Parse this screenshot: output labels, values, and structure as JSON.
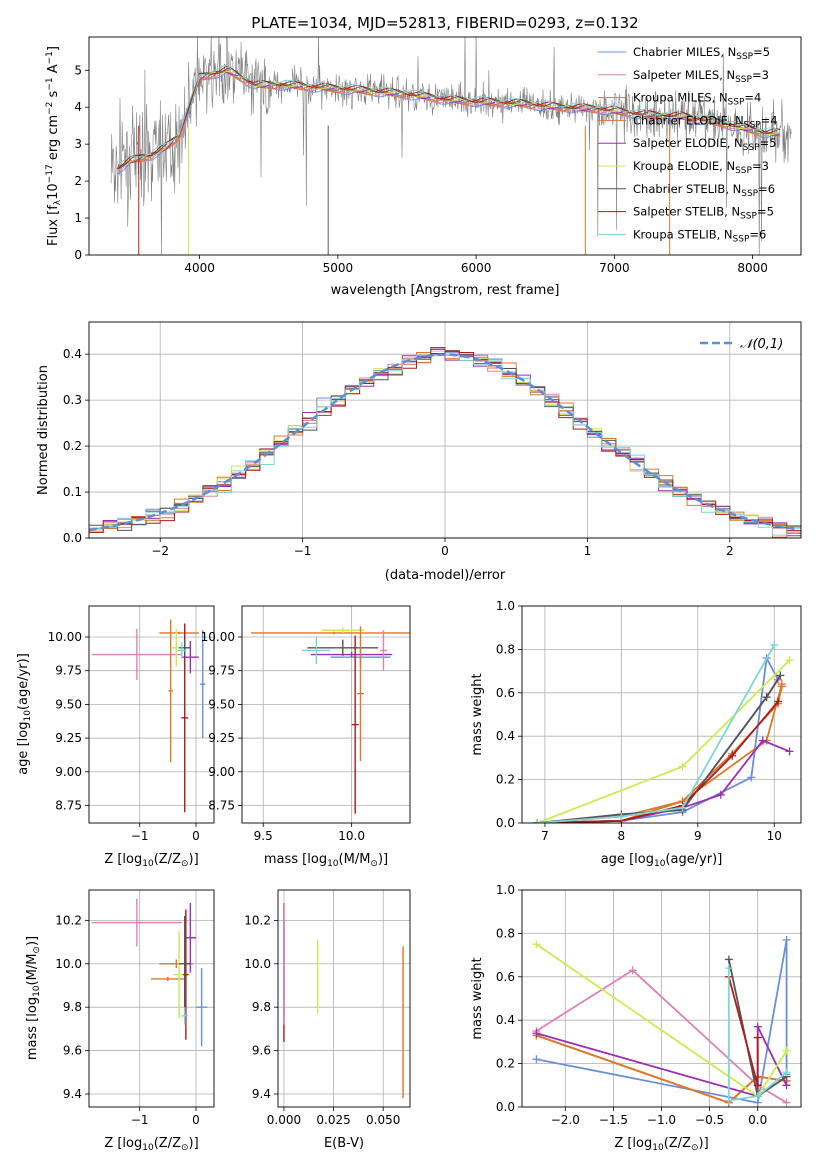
{
  "figure_title": "PLATE=1034, MJD=52813, FIBERID=0293, z=0.132",
  "colors": {
    "Chabrier MILES": "#6a8fd9",
    "Salpeter MILES": "#e07fb6",
    "Kroupa MILES": "#e0762a",
    "Chabrier ELODIE": "#e0762a",
    "Salpeter ELODIE": "#9a2fb5",
    "Kroupa ELODIE": "#c9ec4f",
    "Chabrier STELIB": "#555555",
    "Salpeter STELIB": "#b01a1a",
    "Kroupa STELIB": "#7dd6d6",
    "data": "#808080",
    "normal": "#5b8fdc",
    "grid": "#b0b0b0"
  },
  "chart_data": [
    {
      "type": "line",
      "xlabel": "wavelength [Angstrom, rest frame]",
      "ylabel": "Flux [f_λ10^-17 erg cm^-2 s^-1 A^-1]",
      "xlim": [
        3200,
        8350
      ],
      "ylim": [
        0,
        5.9
      ],
      "xticks": [
        4000,
        5000,
        6000,
        7000,
        8000
      ],
      "yticks": [
        0,
        1,
        2,
        3,
        4,
        5
      ],
      "grid": false,
      "legend_position": "top-right",
      "series": [
        {
          "name": "Chabrier MILES, N_SSP=5"
        },
        {
          "name": "Salpeter MILES, N_SSP=3"
        },
        {
          "name": "Kroupa MILES, N_SSP=4"
        },
        {
          "name": "Chabrier ELODIE, N_SSP=4"
        },
        {
          "name": "Salpeter ELODIE, N_SSP=5"
        },
        {
          "name": "Kroupa ELODIE, N_SSP=3"
        },
        {
          "name": "Chabrier STELIB, N_SSP=6"
        },
        {
          "name": "Salpeter STELIB, N_SSP=5"
        },
        {
          "name": "Kroupa STELIB, N_SSP=6"
        }
      ],
      "model_continuum": {
        "x": [
          3350,
          3500,
          3650,
          3750,
          3850,
          4000,
          4200,
          4400,
          4600,
          4800,
          5000,
          5200,
          5500,
          5800,
          6000,
          6300,
          6600,
          6900,
          7200,
          7500,
          7800,
          8100
        ],
        "y": [
          2.2,
          2.55,
          2.7,
          2.9,
          3.2,
          4.8,
          5.0,
          4.6,
          4.6,
          4.55,
          4.5,
          4.45,
          4.35,
          4.2,
          4.15,
          4.1,
          4.0,
          3.95,
          3.8,
          3.75,
          3.55,
          3.3
        ]
      }
    },
    {
      "type": "line",
      "xlabel": "(data-model)/error",
      "ylabel": "Normed distribution",
      "xlim": [
        -2.5,
        2.5
      ],
      "ylim": [
        0,
        0.47
      ],
      "xticks": [
        -2,
        -1,
        0,
        1,
        2
      ],
      "yticks": [
        0.0,
        0.1,
        0.2,
        0.3,
        0.4
      ],
      "grid": true,
      "legend_position": "top-right",
      "reference_curve": {
        "name": "𝒩(0,1)",
        "mu": 0,
        "sigma": 1
      }
    },
    {
      "type": "scatter",
      "xlabel": "Z [log10(Z/Z⊙)]",
      "ylabel": "age  [log10(age/yr)]",
      "xlim": [
        -1.9,
        0.32
      ],
      "ylim": [
        8.62,
        10.23
      ],
      "xticks": [
        -1,
        0
      ],
      "yticks": [
        8.75,
        9.0,
        9.25,
        9.5,
        9.75,
        10.0
      ],
      "grid": true,
      "points": [
        {
          "fit": "Salpeter MILES",
          "x": -1.05,
          "y": 9.87,
          "xerr": 0.8,
          "yerr": 0.19
        },
        {
          "fit": "Chabrier ELODIE",
          "x": -0.3,
          "y": 10.03,
          "xerr": 0.35,
          "yerr": 0.01
        },
        {
          "fit": "Kroupa ELODIE",
          "x": -0.35,
          "y": 9.92,
          "xerr": 0.08,
          "yerr": 0.14
        },
        {
          "fit": "Kroupa MILES",
          "x": -0.45,
          "y": 9.6,
          "xerr": 0.04,
          "yerr": 0.53
        },
        {
          "fit": "Chabrier MILES",
          "x": 0.12,
          "y": 9.65,
          "xerr": 0.05,
          "yerr": 0.4
        },
        {
          "fit": "Salpeter ELODIE",
          "x": -0.1,
          "y": 9.85,
          "xerr": 0.15,
          "yerr": 0.12
        },
        {
          "fit": "Salpeter STELIB",
          "x": -0.2,
          "y": 9.4,
          "xerr": 0.06,
          "yerr": 0.7
        },
        {
          "fit": "Chabrier STELIB",
          "x": -0.2,
          "y": 9.92,
          "xerr": 0.1,
          "yerr": 0.06
        },
        {
          "fit": "Kroupa STELIB",
          "x": -0.25,
          "y": 9.9,
          "xerr": 0.08,
          "yerr": 0.06
        }
      ]
    },
    {
      "type": "scatter",
      "xlabel": "mass [log10(M/M⊙)]",
      "ylabel": "",
      "xlim": [
        9.38,
        10.33
      ],
      "ylim": [
        8.62,
        10.23
      ],
      "xticks": [
        9.5,
        10.0
      ],
      "yticks": [
        8.75,
        9.0,
        9.25,
        9.5,
        9.75,
        10.0
      ],
      "grid": true,
      "points": [
        {
          "fit": "Kroupa MILES",
          "x": 9.9,
          "y": 10.03,
          "xerr": 0.47,
          "yerr": 0.01
        },
        {
          "fit": "Kroupa ELODIE",
          "x": 9.95,
          "y": 10.05,
          "xerr": 0.12,
          "yerr": 0.02
        },
        {
          "fit": "Chabrier MILES",
          "x": 10.05,
          "y": 9.85,
          "xerr": 0.17,
          "yerr": 0.07
        },
        {
          "fit": "Salpeter ELODIE",
          "x": 10.0,
          "y": 9.87,
          "xerr": 0.23,
          "yerr": 0.02
        },
        {
          "fit": "Salpeter STELIB",
          "x": 10.02,
          "y": 9.35,
          "xerr": 0.02,
          "yerr": 0.66
        },
        {
          "fit": "Chabrier STELIB",
          "x": 9.95,
          "y": 9.92,
          "xerr": 0.2,
          "yerr": 0.06
        },
        {
          "fit": "Kroupa STELIB",
          "x": 9.8,
          "y": 9.9,
          "xerr": 0.08,
          "yerr": 0.1
        },
        {
          "fit": "Salpeter MILES",
          "x": 10.18,
          "y": 9.9,
          "xerr": 0.02,
          "yerr": 0.15
        },
        {
          "fit": "Chabrier ELODIE",
          "x": 10.05,
          "y": 9.58,
          "xerr": 0.02,
          "yerr": 0.5
        }
      ]
    },
    {
      "type": "line",
      "xlabel": "age  [log10(age/yr)]",
      "ylabel": "mass weight",
      "xlim": [
        6.7,
        10.35
      ],
      "ylim": [
        0,
        1.0
      ],
      "xticks": [
        7,
        8,
        9,
        10
      ],
      "yticks": [
        0.0,
        0.2,
        0.4,
        0.6,
        0.8,
        1.0
      ],
      "grid": true,
      "series": [
        {
          "fit": "Chabrier MILES",
          "x": [
            6.9,
            8.0,
            8.8,
            9.7,
            9.9,
            10.05
          ],
          "y": [
            0.0,
            0.01,
            0.05,
            0.21,
            0.76,
            0.66
          ]
        },
        {
          "fit": "Salpeter MILES",
          "x": [
            6.9,
            8.8,
            9.9,
            10.05
          ],
          "y": [
            0.0,
            0.06,
            0.58,
            0.66
          ]
        },
        {
          "fit": "Kroupa MILES",
          "x": [
            6.9,
            8.0,
            8.8,
            9.9,
            10.1
          ],
          "y": [
            0.0,
            0.03,
            0.1,
            0.38,
            0.64
          ]
        },
        {
          "fit": "Chabrier ELODIE",
          "x": [
            6.9,
            8.0,
            8.8,
            9.45,
            10.05,
            10.1
          ],
          "y": [
            0.0,
            0.01,
            0.1,
            0.32,
            0.55,
            0.63
          ]
        },
        {
          "fit": "Salpeter ELODIE",
          "x": [
            6.9,
            8.0,
            8.8,
            9.3,
            9.85,
            10.2
          ],
          "y": [
            0.0,
            0.01,
            0.07,
            0.13,
            0.38,
            0.33
          ]
        },
        {
          "fit": "Kroupa ELODIE",
          "x": [
            6.9,
            8.8,
            10.2
          ],
          "y": [
            0.0,
            0.26,
            0.75
          ]
        },
        {
          "fit": "Chabrier STELIB",
          "x": [
            6.9,
            8.0,
            8.8,
            9.9,
            10.08
          ],
          "y": [
            0.0,
            0.04,
            0.06,
            0.58,
            0.68
          ]
        },
        {
          "fit": "Salpeter STELIB",
          "x": [
            6.9,
            8.0,
            8.8,
            9.45,
            10.05
          ],
          "y": [
            0.0,
            0.01,
            0.08,
            0.31,
            0.56
          ]
        },
        {
          "fit": "Kroupa STELIB",
          "x": [
            6.9,
            8.0,
            8.8,
            10.0
          ],
          "y": [
            0.0,
            0.03,
            0.07,
            0.82
          ]
        }
      ]
    },
    {
      "type": "scatter",
      "xlabel": "Z [log10(Z/Z⊙)]",
      "ylabel": "mass [log10(M/M⊙)]",
      "xlim": [
        -1.9,
        0.32
      ],
      "ylim": [
        9.34,
        10.34
      ],
      "xticks": [
        -1,
        0
      ],
      "yticks": [
        9.4,
        9.6,
        9.8,
        10.0,
        10.2
      ],
      "grid": true,
      "points": [
        {
          "fit": "Salpeter MILES",
          "x": -1.05,
          "y": 10.19,
          "xerr": 0.8,
          "yerr": 0.11
        },
        {
          "fit": "Kroupa MILES",
          "x": -0.35,
          "y": 10.0,
          "xerr": 0.3,
          "yerr": 0.02
        },
        {
          "fit": "Chabrier ELODIE",
          "x": -0.5,
          "y": 9.93,
          "xerr": 0.3,
          "yerr": 0.01
        },
        {
          "fit": "Kroupa ELODIE",
          "x": -0.3,
          "y": 9.95,
          "xerr": 0.1,
          "yerr": 0.2
        },
        {
          "fit": "Chabrier MILES",
          "x": 0.1,
          "y": 9.8,
          "xerr": 0.1,
          "yerr": 0.18
        },
        {
          "fit": "Salpeter ELODIE",
          "x": -0.1,
          "y": 10.12,
          "xerr": 0.1,
          "yerr": 0.16
        },
        {
          "fit": "Salpeter STELIB",
          "x": -0.18,
          "y": 9.95,
          "xerr": 0.05,
          "yerr": 0.3
        },
        {
          "fit": "Chabrier STELIB",
          "x": -0.2,
          "y": 10.0,
          "xerr": 0.1,
          "yerr": 0.22
        },
        {
          "fit": "Kroupa STELIB",
          "x": -0.2,
          "y": 9.76,
          "xerr": 0.06,
          "yerr": 0.04
        }
      ]
    },
    {
      "type": "scatter",
      "xlabel": "E(B-V)",
      "ylabel": "",
      "xlim": [
        -0.003,
        0.0635
      ],
      "ylim": [
        9.34,
        10.34
      ],
      "xticks": [
        0.0,
        0.025,
        0.05
      ],
      "yticks": [
        9.4,
        9.6,
        9.8,
        10.0,
        10.2
      ],
      "grid": true,
      "points": [
        {
          "fit": "Salpeter STELIB",
          "x": 0.0,
          "y": 9.96,
          "xerr": 0.0003,
          "yerr": 0.32
        },
        {
          "fit": "Chabrier MILES",
          "x": 0.0,
          "y": 9.95,
          "xerr": 0.0003,
          "yerr": 0.22
        },
        {
          "fit": "Kroupa ELODIE",
          "x": 0.017,
          "y": 9.94,
          "xerr": 0.0003,
          "yerr": 0.17
        },
        {
          "fit": "Chabrier ELODIE",
          "x": 0.06,
          "y": 9.73,
          "xerr": 0.0003,
          "yerr": 0.35
        },
        {
          "fit": "Salpeter MILES",
          "x": 0.0,
          "y": 10.0,
          "xerr": 0.0003,
          "yerr": 0.28
        }
      ]
    },
    {
      "type": "line",
      "xlabel": "Z [log10(Z/Z⊙)]",
      "ylabel": "mass weight",
      "xlim": [
        -2.45,
        0.45
      ],
      "ylim": [
        0,
        1.0
      ],
      "xticks": [
        -2.0,
        -1.5,
        -1.0,
        -0.5,
        0.0
      ],
      "yticks": [
        0.0,
        0.2,
        0.4,
        0.6,
        0.8,
        1.0
      ],
      "grid": true,
      "series": [
        {
          "fit": "Chabrier MILES",
          "x": [
            -2.3,
            0.0,
            0.3,
            0.3
          ],
          "y": [
            0.22,
            0.02,
            0.77,
            0.15
          ]
        },
        {
          "fit": "Salpeter MILES",
          "x": [
            -2.3,
            -1.3,
            0.0,
            0.3
          ],
          "y": [
            0.35,
            0.63,
            0.1,
            0.02
          ]
        },
        {
          "fit": "Kroupa MILES",
          "x": [
            -2.3,
            -0.3,
            0.0,
            0.3
          ],
          "y": [
            0.33,
            0.02,
            0.14,
            0.12
          ]
        },
        {
          "fit": "Chabrier ELODIE",
          "x": [
            -2.3,
            -0.3,
            0.0,
            0.3
          ],
          "y": [
            0.33,
            0.02,
            0.14,
            0.12
          ]
        },
        {
          "fit": "Salpeter ELODIE",
          "x": [
            -2.3,
            0.0,
            0.0,
            0.3
          ],
          "y": [
            0.34,
            0.05,
            0.37,
            0.1
          ]
        },
        {
          "fit": "Kroupa ELODIE",
          "x": [
            -2.3,
            0.0,
            0.3
          ],
          "y": [
            0.75,
            0.05,
            0.26
          ]
        },
        {
          "fit": "Chabrier STELIB",
          "x": [
            -0.3,
            0.0,
            0.3
          ],
          "y": [
            0.68,
            0.05,
            0.14
          ]
        },
        {
          "fit": "Salpeter STELIB",
          "x": [
            -0.3,
            0.0,
            0.0
          ],
          "y": [
            0.6,
            0.1,
            0.32
          ]
        },
        {
          "fit": "Kroupa STELIB",
          "x": [
            -0.3,
            -0.3,
            0.0,
            0.3
          ],
          "y": [
            0.64,
            0.03,
            0.05,
            0.16
          ]
        }
      ]
    }
  ]
}
